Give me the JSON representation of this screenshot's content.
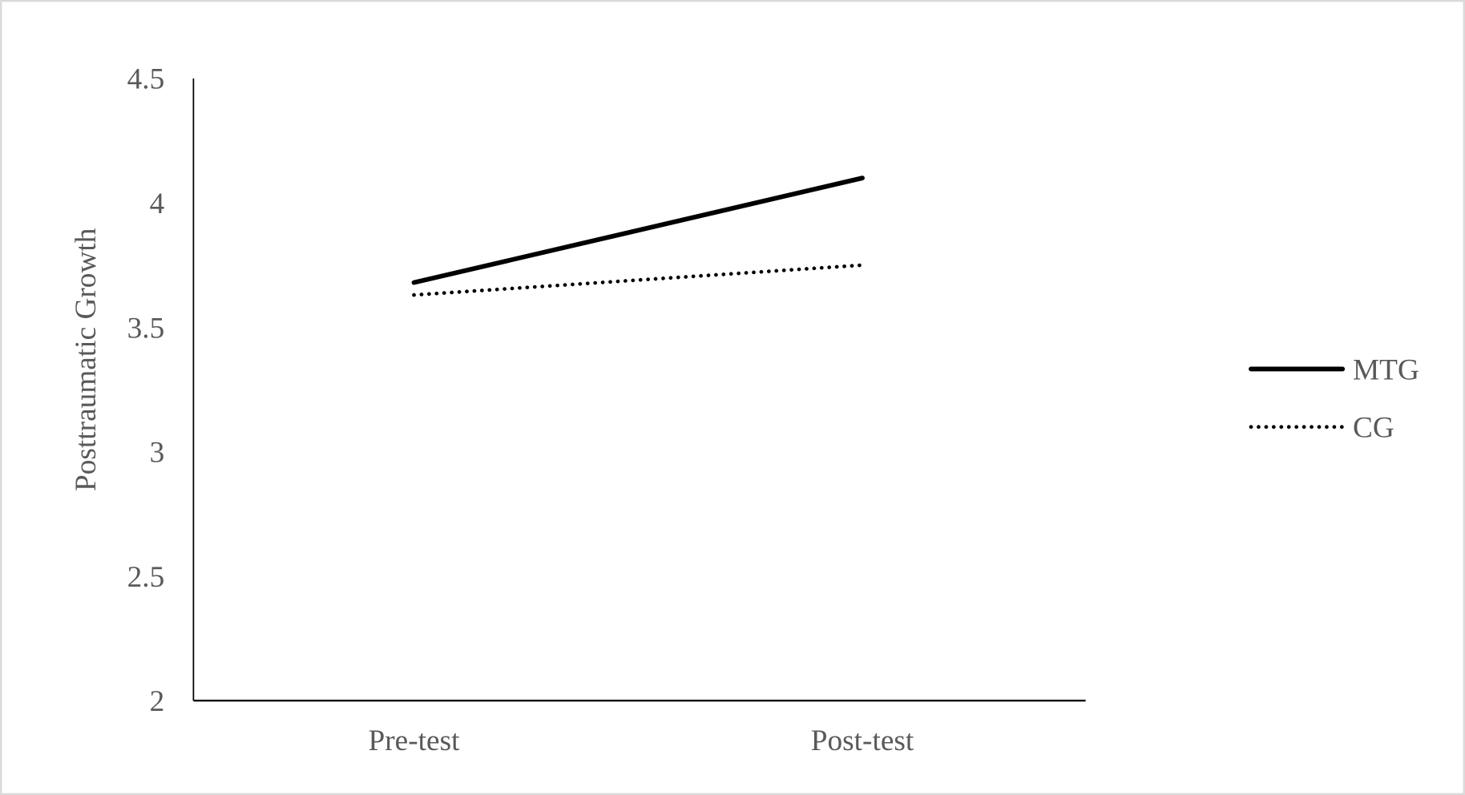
{
  "chart_data": {
    "type": "line",
    "title": "",
    "xlabel": "",
    "ylabel": "Posttraumatic Growth",
    "categories": [
      "Pre-test",
      "Post-test"
    ],
    "ylim": [
      2,
      4.5
    ],
    "yticks": [
      "2",
      "2.5",
      "3",
      "3.5",
      "4",
      "4.5"
    ],
    "grid": false,
    "legend_position": "right",
    "series": [
      {
        "name": "MTG",
        "values": [
          3.68,
          4.1
        ],
        "style": "solid",
        "color": "#000000"
      },
      {
        "name": "CG",
        "values": [
          3.63,
          3.75
        ],
        "style": "dotted",
        "color": "#000000"
      }
    ]
  }
}
